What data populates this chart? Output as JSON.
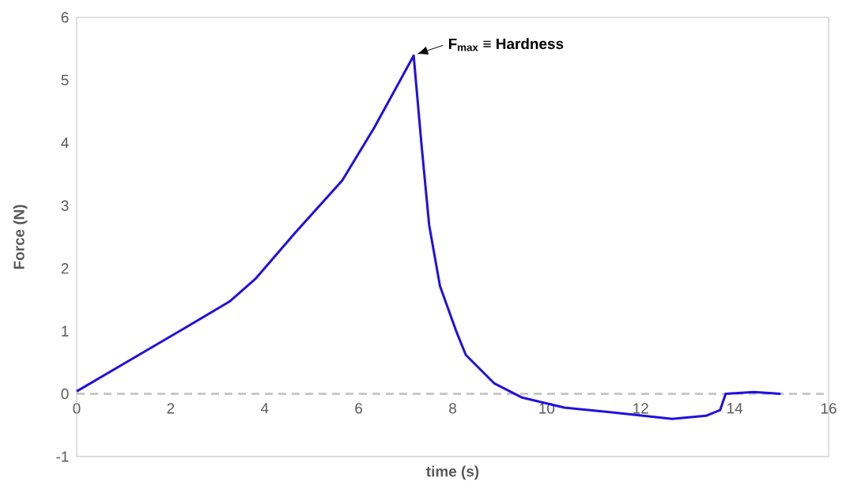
{
  "chart_data": {
    "type": "line",
    "xlabel": "time (s)",
    "ylabel": "Force (N)",
    "xlim": [
      0,
      16
    ],
    "ylim": [
      -1,
      6
    ],
    "xticks": [
      0,
      2,
      4,
      6,
      8,
      10,
      12,
      14,
      16
    ],
    "yticks": [
      -1,
      0,
      1,
      2,
      3,
      4,
      5,
      6
    ],
    "series": [
      {
        "color": "#2010e0",
        "x": [
          0,
          1.0,
          2.35,
          3.25,
          3.8,
          4.64,
          5.65,
          6.33,
          7.17,
          7.34,
          7.5,
          7.73,
          8.07,
          8.28,
          8.88,
          9.48,
          10.38,
          11.59,
          12.67,
          13.39,
          13.69,
          13.81,
          14.41,
          14.98
        ],
        "values": [
          0.04,
          0.48,
          1.07,
          1.47,
          1.83,
          2.56,
          3.4,
          4.24,
          5.39,
          3.95,
          2.69,
          1.72,
          1.01,
          0.62,
          0.17,
          -0.06,
          -0.22,
          -0.31,
          -0.4,
          -0.35,
          -0.26,
          0.0,
          0.03,
          0.0
        ]
      }
    ],
    "ref_lines": [
      {
        "axis": "y",
        "value": 0,
        "color": "#bfbfbf",
        "line_style": "dashed"
      }
    ],
    "annotations": [
      {
        "text": "F$_{max}$ ≡ Hardness",
        "x": 7.17,
        "y": 5.39
      }
    ]
  }
}
